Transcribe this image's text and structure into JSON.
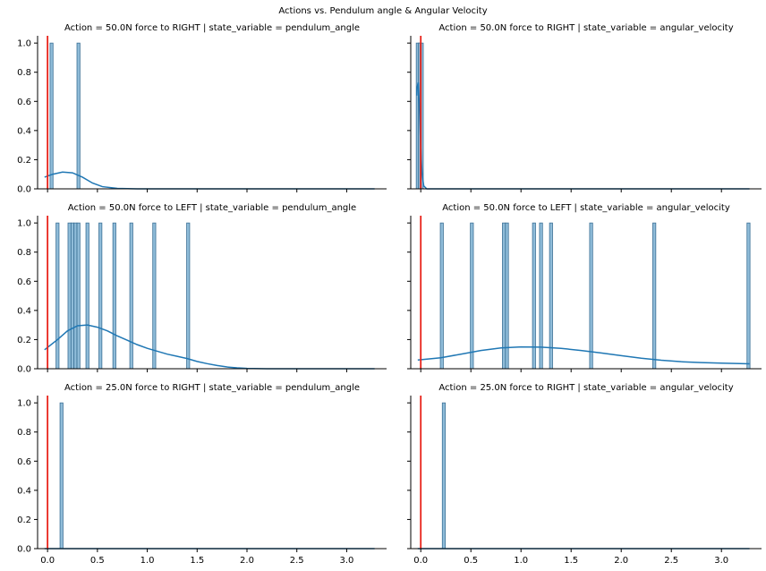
{
  "suptitle": "Actions vs. Pendulum angle & Angular Velocity",
  "colors": {
    "bar_fill": "#8fbcd9",
    "bar_edge": "#3a6f95",
    "kde": "#1f77b4",
    "vline": "#e8231a",
    "axis": "#000000"
  },
  "chart_data": [
    {
      "type": "bar",
      "title": "Action = 50.0N force to RIGHT | state_variable = pendulum_angle",
      "bars": [
        0.04,
        0.31
      ],
      "kde": [
        [
          -0.03,
          0.08
        ],
        [
          0.05,
          0.1
        ],
        [
          0.15,
          0.115
        ],
        [
          0.25,
          0.11
        ],
        [
          0.35,
          0.08
        ],
        [
          0.45,
          0.04
        ],
        [
          0.55,
          0.015
        ],
        [
          0.7,
          0.003
        ],
        [
          0.9,
          0.0
        ],
        [
          3.28,
          0.0
        ]
      ],
      "xlim": [
        -0.1,
        3.4
      ],
      "ylim": [
        0,
        1.05
      ]
    },
    {
      "type": "bar",
      "title": "Action = 50.0N force to RIGHT | state_variable = angular_velocity",
      "bars": [
        -0.03,
        -0.01,
        0.01
      ],
      "kde": [
        [
          -0.04,
          0.64
        ],
        [
          -0.035,
          0.7
        ],
        [
          -0.025,
          0.73
        ],
        [
          -0.015,
          0.58
        ],
        [
          -0.005,
          0.38
        ],
        [
          0.005,
          0.2
        ],
        [
          0.015,
          0.09
        ],
        [
          0.03,
          0.02
        ],
        [
          0.06,
          0.0
        ],
        [
          3.28,
          0.0
        ]
      ],
      "xlim": [
        -0.1,
        3.4
      ],
      "ylim": [
        0,
        1.05
      ]
    },
    {
      "type": "bar",
      "title": "Action = 50.0N force to LEFT | state_variable = pendulum_angle",
      "bars": [
        0.1,
        0.22,
        0.25,
        0.28,
        0.31,
        0.4,
        0.53,
        0.67,
        0.84,
        1.07,
        1.41
      ],
      "kde": [
        [
          -0.03,
          0.13
        ],
        [
          0.1,
          0.2
        ],
        [
          0.2,
          0.26
        ],
        [
          0.3,
          0.295
        ],
        [
          0.4,
          0.3
        ],
        [
          0.5,
          0.285
        ],
        [
          0.6,
          0.26
        ],
        [
          0.7,
          0.225
        ],
        [
          0.8,
          0.195
        ],
        [
          0.9,
          0.165
        ],
        [
          1.0,
          0.14
        ],
        [
          1.1,
          0.12
        ],
        [
          1.2,
          0.1
        ],
        [
          1.3,
          0.085
        ],
        [
          1.4,
          0.07
        ],
        [
          1.5,
          0.05
        ],
        [
          1.6,
          0.035
        ],
        [
          1.7,
          0.022
        ],
        [
          1.8,
          0.012
        ],
        [
          1.9,
          0.006
        ],
        [
          2.0,
          0.002
        ],
        [
          2.2,
          0.0
        ],
        [
          3.28,
          0.0
        ]
      ],
      "xlim": [
        -0.1,
        3.4
      ],
      "ylim": [
        0,
        1.05
      ]
    },
    {
      "type": "bar",
      "title": "Action = 50.0N force to LEFT | state_variable = angular_velocity",
      "bars": [
        0.21,
        0.51,
        0.83,
        0.86,
        1.13,
        1.2,
        1.3,
        1.7,
        2.33,
        3.27
      ],
      "kde": [
        [
          -0.03,
          0.06
        ],
        [
          0.2,
          0.075
        ],
        [
          0.4,
          0.1
        ],
        [
          0.6,
          0.125
        ],
        [
          0.8,
          0.143
        ],
        [
          1.0,
          0.15
        ],
        [
          1.2,
          0.148
        ],
        [
          1.4,
          0.14
        ],
        [
          1.6,
          0.125
        ],
        [
          1.8,
          0.108
        ],
        [
          2.0,
          0.09
        ],
        [
          2.2,
          0.072
        ],
        [
          2.4,
          0.058
        ],
        [
          2.6,
          0.048
        ],
        [
          2.8,
          0.042
        ],
        [
          3.0,
          0.038
        ],
        [
          3.28,
          0.034
        ]
      ],
      "xlim": [
        -0.1,
        3.4
      ],
      "ylim": [
        0,
        1.05
      ]
    },
    {
      "type": "bar",
      "title": "Action = 25.0N force to RIGHT | state_variable = pendulum_angle",
      "bars": [
        0.14
      ],
      "kde": [
        [
          -0.03,
          0.0
        ],
        [
          3.28,
          0.0
        ]
      ],
      "xlim": [
        -0.1,
        3.4
      ],
      "ylim": [
        0,
        1.05
      ],
      "xticks": [
        "0.0",
        "0.5",
        "1.0",
        "1.5",
        "2.0",
        "2.5",
        "3.0"
      ]
    },
    {
      "type": "bar",
      "title": "Action = 25.0N force to RIGHT | state_variable = angular_velocity",
      "bars": [
        0.23
      ],
      "kde": [
        [
          -0.03,
          0.0
        ],
        [
          3.28,
          0.0
        ]
      ],
      "xlim": [
        -0.1,
        3.4
      ],
      "ylim": [
        0,
        1.05
      ],
      "xticks": [
        "0.0",
        "0.5",
        "1.0",
        "1.5",
        "2.0",
        "2.5",
        "3.0"
      ]
    }
  ],
  "shared": {
    "yticks": [
      "0.0",
      "0.2",
      "0.4",
      "0.6",
      "0.8",
      "1.0"
    ],
    "bar_height": 1.0,
    "bar_width": 0.03,
    "vline_x": 0.0
  }
}
